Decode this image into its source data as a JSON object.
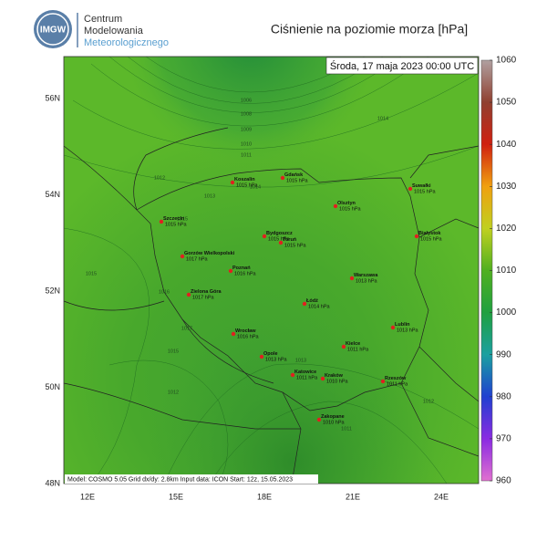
{
  "header": {
    "logo": "IMGW",
    "org_lines": [
      "Centrum",
      "Modelowania",
      "Meteorologicznego"
    ],
    "title": "Ciśnienie na poziomie morza [hPa]"
  },
  "map": {
    "valid_time": "Środa, 17 maja 2023 00:00 UTC",
    "lat_labels": [
      "56N",
      "54N",
      "52N",
      "50N",
      "48N"
    ],
    "lon_labels": [
      "12E",
      "15E",
      "18E",
      "21E",
      "24E"
    ],
    "footer": "Model: COSMO 5.05  Grid dx/dy: 2.8km  Input data: ICON  Start: 12z, 15.05.2023",
    "isobar_labels": [
      "1006",
      "1008",
      "1009",
      "1010",
      "1011",
      "1012",
      "1013",
      "1014",
      "1014",
      "1015",
      "1016",
      "1017",
      "1015",
      "1013",
      "1012",
      "1011",
      "1012",
      "1015"
    ],
    "cities": [
      {
        "name": "Koszalin",
        "pressure": "1015 hPa"
      },
      {
        "name": "Gdańsk",
        "pressure": "1015 hPa"
      },
      {
        "name": "Suwałki",
        "pressure": "1015 hPa"
      },
      {
        "name": "Szczecin",
        "pressure": "1015 hPa"
      },
      {
        "name": "Olsztyn",
        "pressure": "1015 hPa"
      },
      {
        "name": "Bydgoszcz",
        "pressure": "1015 hPa"
      },
      {
        "name": "Toruń",
        "pressure": "1015 hPa"
      },
      {
        "name": "Białystok",
        "pressure": "1015 hPa"
      },
      {
        "name": "Gorzów Wielkopolski",
        "pressure": "1017 hPa"
      },
      {
        "name": "Poznań",
        "pressure": "1016 hPa"
      },
      {
        "name": "Warszawa",
        "pressure": "1013 hPa"
      },
      {
        "name": "Zielona Góra",
        "pressure": "1017 hPa"
      },
      {
        "name": "Łódź",
        "pressure": "1014 hPa"
      },
      {
        "name": "Lublin",
        "pressure": "1013 hPa"
      },
      {
        "name": "Wrocław",
        "pressure": "1016 hPa"
      },
      {
        "name": "Kielce",
        "pressure": "1011 hPa"
      },
      {
        "name": "Opole",
        "pressure": "1013 hPa"
      },
      {
        "name": "Katowice",
        "pressure": "1011 hPa"
      },
      {
        "name": "Kraków",
        "pressure": "1010 hPa"
      },
      {
        "name": "Rzeszów",
        "pressure": "1011 hPa"
      },
      {
        "name": "Zakopane",
        "pressure": "1010 hPa"
      }
    ]
  },
  "colorbar": {
    "lim": [
      960,
      1060
    ],
    "ticks": [
      960,
      970,
      980,
      990,
      1000,
      1010,
      1020,
      1030,
      1040,
      1050,
      1060
    ],
    "colors": [
      "#e070d0",
      "#8a2be2",
      "#2040d0",
      "#1aa0a0",
      "#20a040",
      "#50b020",
      "#c0d020",
      "#f0a010",
      "#d02010",
      "#904030",
      "#b0a0a0"
    ]
  }
}
